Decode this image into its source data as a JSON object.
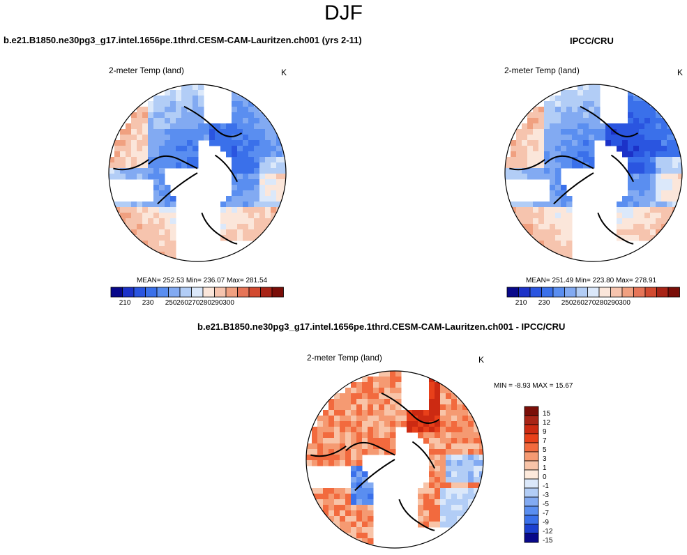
{
  "title": "DJF",
  "panels": [
    {
      "case": "b.e21.B1850.ne30pg3_g17.intel.1656pe.1thrd.CESM-CAM-Lauritzen.ch001 (yrs 2-11)",
      "field": "2-meter Temp (land)",
      "units": "K",
      "stats": "MEAN= 252.53  Min= 236.07  Max= 281.54",
      "tick_labels": [
        "210",
        "230",
        "250",
        "260",
        "270",
        "280",
        "290",
        "300"
      ]
    },
    {
      "case": "IPCC/CRU",
      "field": "2-meter Temp (land)",
      "units": "K",
      "stats": "MEAN= 251.49  Min= 223.80  Max= 278.91",
      "tick_labels": [
        "210",
        "230",
        "250",
        "260",
        "270",
        "280",
        "290",
        "300"
      ]
    },
    {
      "case": "b.e21.B1850.ne30pg3_g17.intel.1656pe.1thrd.CESM-CAM-Lauritzen.ch001 - IPCC/CRU",
      "field": "2-meter Temp (land)",
      "units": "K",
      "stats": "MIN =  -8.93 MAX =  15.67",
      "tick_labels": [
        "15",
        "12",
        "9",
        "7",
        "5",
        "3",
        "1",
        "0",
        "-1",
        "-3",
        "-5",
        "-7",
        "-9",
        "-12",
        "-15"
      ]
    }
  ],
  "colors": {
    "abs_palette": [
      "#08088a",
      "#1c32c8",
      "#2a55e0",
      "#3a70ea",
      "#5a8ef0",
      "#82aaf2",
      "#b2cdf6",
      "#dbe8fa",
      "#fbe6da",
      "#f6c4ae",
      "#f0a080",
      "#e67558",
      "#d24a30",
      "#a82416",
      "#7a0e08"
    ],
    "diff_palette": [
      "#7a0e08",
      "#a82416",
      "#cc2a12",
      "#e8401a",
      "#f26a3e",
      "#f59a72",
      "#f8c4a8",
      "#fdeadc",
      "#dbe8fa",
      "#b2cdf6",
      "#82aaf2",
      "#5a8ef0",
      "#3a70ea",
      "#1c40d0",
      "#08088a"
    ]
  }
}
